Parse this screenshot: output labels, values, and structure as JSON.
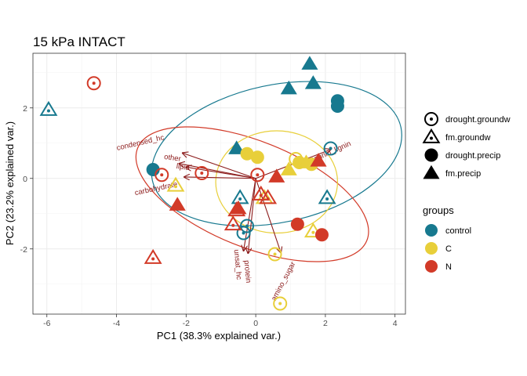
{
  "chart_data": {
    "type": "scatter",
    "title": "15 kPa INTACT",
    "xlabel": "PC1 (38.3% explained var.)",
    "ylabel": "PC2 (23.2% explained var.)",
    "xlim": [
      -6.4,
      4.3
    ],
    "ylim": [
      -3.85,
      3.55
    ],
    "x_ticks": [
      -6,
      -4,
      -2,
      0,
      2,
      4
    ],
    "y_ticks": [
      -2,
      0,
      2
    ],
    "grid": true,
    "legend_placement": "right",
    "shape_legend": {
      "title": "",
      "entries": [
        {
          "label": "drought.groundw",
          "shape": "circle-open"
        },
        {
          "label": "fm.groundw",
          "shape": "triangle-open"
        },
        {
          "label": "drought.precip",
          "shape": "circle-filled"
        },
        {
          "label": "fm.precip",
          "shape": "triangle-filled"
        }
      ]
    },
    "color_legend": {
      "title": "groups",
      "entries": [
        {
          "label": "control",
          "color": "#17798f"
        },
        {
          "label": "C",
          "color": "#e8cf3a"
        },
        {
          "label": "N",
          "color": "#d23a28"
        }
      ]
    },
    "ellipses": [
      {
        "group": "control",
        "color": "#17798f",
        "cx": 0.6,
        "cy": 0.7,
        "rx": 3.65,
        "ry": 1.95,
        "angle_deg": 12
      },
      {
        "group": "N",
        "color": "#d23a28",
        "cx": -0.1,
        "cy": -0.45,
        "rx": 3.55,
        "ry": 1.5,
        "angle_deg": -22
      },
      {
        "group": "C",
        "color": "#e8cf3a",
        "cx": 0.6,
        "cy": -0.1,
        "rx": 1.75,
        "ry": 1.45,
        "angle_deg": 0
      }
    ],
    "loadings": [
      {
        "label": "condensed_hc",
        "x": -2.1,
        "y": 0.72,
        "angle_deg": 13,
        "lx": -3.3,
        "ly": 0.95
      },
      {
        "label": "other",
        "x": -2.2,
        "y": 0.42,
        "angle_deg": -8,
        "lx": -2.4,
        "ly": 0.52
      },
      {
        "label": "lipid",
        "x": -2.0,
        "y": 0.32,
        "angle_deg": -8,
        "lx": -2.1,
        "ly": 0.26
      },
      {
        "label": "carbohydrate",
        "x": -2.05,
        "y": 0.04,
        "angle_deg": 12,
        "lx": -2.85,
        "ly": -0.35
      },
      {
        "label": "tannin_lignin",
        "x": 2.15,
        "y": 0.82,
        "angle_deg": 24,
        "lx": 2.2,
        "ly": 0.7
      },
      {
        "label": "unsat_hc",
        "x": -0.35,
        "y": -2.05,
        "angle_deg": -85,
        "lx": -0.58,
        "ly": -2.45
      },
      {
        "label": "protein",
        "x": -0.22,
        "y": -2.12,
        "angle_deg": -85,
        "lx": -0.3,
        "ly": -2.65
      },
      {
        "label": "amino_sugar",
        "x": 0.72,
        "y": -2.1,
        "angle_deg": 62,
        "lx": 0.85,
        "ly": -2.95
      }
    ],
    "series": [
      {
        "name": "control",
        "color": "#17798f",
        "points": [
          {
            "x": -5.95,
            "y": 1.95,
            "shape": "triangle-open"
          },
          {
            "x": 2.15,
            "y": 0.85,
            "shape": "circle-open"
          },
          {
            "x": 2.05,
            "y": -0.55,
            "shape": "triangle-open"
          },
          {
            "x": -0.45,
            "y": -0.55,
            "shape": "triangle-open"
          },
          {
            "x": -0.35,
            "y": -1.55,
            "shape": "circle-open"
          },
          {
            "x": -0.25,
            "y": -1.35,
            "shape": "circle-open"
          },
          {
            "x": -2.95,
            "y": 0.25,
            "shape": "circle-filled"
          },
          {
            "x": 2.35,
            "y": 2.2,
            "shape": "circle-filled"
          },
          {
            "x": 2.35,
            "y": 2.05,
            "shape": "circle-filled"
          },
          {
            "x": -0.55,
            "y": 0.85,
            "shape": "triangle-filled"
          },
          {
            "x": 1.55,
            "y": 3.25,
            "shape": "triangle-filled"
          },
          {
            "x": 0.95,
            "y": 2.55,
            "shape": "triangle-filled"
          },
          {
            "x": 1.65,
            "y": 2.7,
            "shape": "triangle-filled"
          }
        ]
      },
      {
        "name": "C",
        "color": "#e8cf3a",
        "points": [
          {
            "x": 1.15,
            "y": 0.55,
            "shape": "circle-open"
          },
          {
            "x": 0.55,
            "y": -2.15,
            "shape": "circle-open"
          },
          {
            "x": 0.7,
            "y": -3.55,
            "shape": "circle-open"
          },
          {
            "x": -2.3,
            "y": -0.2,
            "shape": "triangle-open"
          },
          {
            "x": 0.25,
            "y": -0.55,
            "shape": "triangle-open"
          },
          {
            "x": 1.65,
            "y": -1.5,
            "shape": "triangle-open"
          },
          {
            "x": -0.25,
            "y": 0.7,
            "shape": "circle-filled"
          },
          {
            "x": 0.05,
            "y": 0.6,
            "shape": "circle-filled"
          },
          {
            "x": 1.25,
            "y": 0.45,
            "shape": "circle-filled"
          },
          {
            "x": 1.6,
            "y": 0.4,
            "shape": "circle-filled"
          },
          {
            "x": 0.95,
            "y": 0.25,
            "shape": "triangle-filled"
          },
          {
            "x": 1.45,
            "y": 0.45,
            "shape": "triangle-filled"
          }
        ]
      },
      {
        "name": "N",
        "color": "#d23a28",
        "points": [
          {
            "x": -4.65,
            "y": 2.7,
            "shape": "circle-open"
          },
          {
            "x": -1.55,
            "y": 0.15,
            "shape": "circle-open"
          },
          {
            "x": -2.7,
            "y": 0.1,
            "shape": "circle-open"
          },
          {
            "x": 0.05,
            "y": 0.1,
            "shape": "circle-open"
          },
          {
            "x": -2.95,
            "y": -2.25,
            "shape": "triangle-open"
          },
          {
            "x": -0.65,
            "y": -1.3,
            "shape": "triangle-open"
          },
          {
            "x": -0.55,
            "y": -0.9,
            "shape": "triangle-open"
          },
          {
            "x": 0.35,
            "y": -0.55,
            "shape": "triangle-open"
          },
          {
            "x": 0.15,
            "y": -0.45,
            "shape": "triangle-open"
          },
          {
            "x": 1.2,
            "y": -1.3,
            "shape": "circle-filled"
          },
          {
            "x": 1.9,
            "y": -1.6,
            "shape": "circle-filled"
          },
          {
            "x": -2.25,
            "y": -0.75,
            "shape": "triangle-filled"
          },
          {
            "x": -0.5,
            "y": -0.85,
            "shape": "triangle-filled"
          },
          {
            "x": 0.6,
            "y": 0.05,
            "shape": "triangle-filled"
          },
          {
            "x": 1.8,
            "y": 0.5,
            "shape": "triangle-filled"
          }
        ]
      }
    ]
  }
}
